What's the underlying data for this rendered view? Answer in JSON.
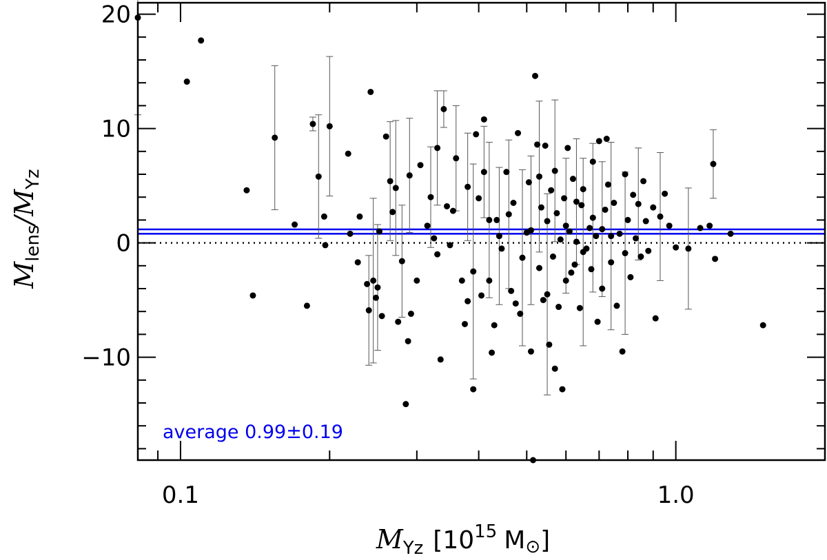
{
  "chart_data": {
    "type": "scatter",
    "x_scale": "log",
    "xlim": [
      0.082,
      2.0
    ],
    "ylim": [
      -19,
      21
    ],
    "x_ticks": [
      {
        "value": 0.1,
        "label": "0.1"
      },
      {
        "value": 1.0,
        "label": "1.0"
      }
    ],
    "y_ticks": [
      {
        "value": -10,
        "label": "−10"
      },
      {
        "value": 0,
        "label": "0"
      },
      {
        "value": 10,
        "label": "10"
      },
      {
        "value": 20,
        "label": "20"
      }
    ],
    "xlabel": {
      "main": "M",
      "sub": "Yz",
      "unit_pre": "[10",
      "unit_exp": "15",
      "unit_post": "M",
      "unit_symbol": "⊙",
      "unit_close": "]"
    },
    "ylabel": {
      "num": "M",
      "num_sub": "lens",
      "slash": "/",
      "den": "M",
      "den_sub": "Yz"
    },
    "zero_line": {
      "y": 0,
      "style": "dotted",
      "color": "#000000"
    },
    "average": {
      "value": 0.99,
      "error": 0.19,
      "color": "#0000ee",
      "label": "average 0.99±0.19"
    },
    "points_with_errors": [
      {
        "x": 0.082,
        "y": 19.7,
        "err": 8.5
      },
      {
        "x": 0.155,
        "y": 9.2,
        "err": 6.3
      },
      {
        "x": 0.185,
        "y": 10.4,
        "err": 0.6
      },
      {
        "x": 0.19,
        "y": 5.8,
        "err": 5.4
      },
      {
        "x": 0.2,
        "y": 10.2,
        "err": 6.1
      },
      {
        "x": 0.24,
        "y": -5.9,
        "err": 4.8
      },
      {
        "x": 0.245,
        "y": -3.3,
        "err": 7.2
      },
      {
        "x": 0.25,
        "y": -3.9,
        "err": 5.5
      },
      {
        "x": 0.265,
        "y": 5.4,
        "err": 5.2
      },
      {
        "x": 0.272,
        "y": 4.8,
        "err": 5.9
      },
      {
        "x": 0.28,
        "y": -1.6,
        "err": 4.9
      },
      {
        "x": 0.29,
        "y": 5.9,
        "err": 5.0
      },
      {
        "x": 0.32,
        "y": 4.0,
        "err": 4.4
      },
      {
        "x": 0.33,
        "y": 8.3,
        "err": 5.0
      },
      {
        "x": 0.34,
        "y": 11.7,
        "err": 1.6
      },
      {
        "x": 0.36,
        "y": 7.4,
        "err": 4.6
      },
      {
        "x": 0.38,
        "y": 4.9,
        "err": 4.7
      },
      {
        "x": 0.39,
        "y": -2.5,
        "err": 9.4
      },
      {
        "x": 0.41,
        "y": 6.2,
        "err": 4.0
      },
      {
        "x": 0.42,
        "y": 2.0,
        "err": 6.8
      },
      {
        "x": 0.44,
        "y": 0.6,
        "err": 6.0
      },
      {
        "x": 0.46,
        "y": 2.5,
        "err": 6.5
      },
      {
        "x": 0.49,
        "y": -1.3,
        "err": 7.7
      },
      {
        "x": 0.51,
        "y": 1.1,
        "err": 6.5
      },
      {
        "x": 0.53,
        "y": 5.8,
        "err": 6.6
      },
      {
        "x": 0.55,
        "y": -4.5,
        "err": 8.8
      },
      {
        "x": 0.57,
        "y": 6.3,
        "err": 6.2
      },
      {
        "x": 0.6,
        "y": 1.5,
        "err": 5.9
      },
      {
        "x": 0.63,
        "y": 3.6,
        "err": 5.5
      },
      {
        "x": 0.65,
        "y": -0.8,
        "err": 8.2
      },
      {
        "x": 0.68,
        "y": 2.2,
        "err": 6.5
      },
      {
        "x": 0.71,
        "y": 1.2,
        "err": 5.9
      },
      {
        "x": 0.74,
        "y": 0.6,
        "err": 8.2
      },
      {
        "x": 0.79,
        "y": -0.9,
        "err": 7.1
      },
      {
        "x": 0.84,
        "y": 3.4,
        "err": 4.9
      },
      {
        "x": 0.93,
        "y": 2.3,
        "err": 5.6
      },
      {
        "x": 1.06,
        "y": -0.5,
        "err": 5.3
      },
      {
        "x": 1.19,
        "y": 6.9,
        "err": 3.0
      }
    ],
    "points": [
      {
        "x": 0.103,
        "y": 14.1
      },
      {
        "x": 0.11,
        "y": 17.7
      },
      {
        "x": 0.136,
        "y": 4.6
      },
      {
        "x": 0.14,
        "y": -4.6
      },
      {
        "x": 0.17,
        "y": 1.6
      },
      {
        "x": 0.18,
        "y": -5.5
      },
      {
        "x": 0.195,
        "y": 2.3
      },
      {
        "x": 0.196,
        "y": -0.2
      },
      {
        "x": 0.218,
        "y": 7.8
      },
      {
        "x": 0.22,
        "y": 0.8
      },
      {
        "x": 0.228,
        "y": -1.7
      },
      {
        "x": 0.23,
        "y": 2.3
      },
      {
        "x": 0.238,
        "y": -3.6
      },
      {
        "x": 0.242,
        "y": 13.2
      },
      {
        "x": 0.248,
        "y": -4.8
      },
      {
        "x": 0.252,
        "y": 1.0
      },
      {
        "x": 0.255,
        "y": -6.4
      },
      {
        "x": 0.26,
        "y": 9.3
      },
      {
        "x": 0.268,
        "y": 2.7
      },
      {
        "x": 0.275,
        "y": -6.9
      },
      {
        "x": 0.285,
        "y": -14.1
      },
      {
        "x": 0.288,
        "y": -8.6
      },
      {
        "x": 0.292,
        "y": -6.2
      },
      {
        "x": 0.3,
        "y": -3.3
      },
      {
        "x": 0.305,
        "y": 6.8
      },
      {
        "x": 0.315,
        "y": 1.5
      },
      {
        "x": 0.325,
        "y": 0.4
      },
      {
        "x": 0.33,
        "y": -1.0
      },
      {
        "x": 0.335,
        "y": -10.2
      },
      {
        "x": 0.345,
        "y": 3.2
      },
      {
        "x": 0.35,
        "y": -0.2
      },
      {
        "x": 0.355,
        "y": 2.8
      },
      {
        "x": 0.37,
        "y": -3.3
      },
      {
        "x": 0.375,
        "y": -7.1
      },
      {
        "x": 0.38,
        "y": -5.1
      },
      {
        "x": 0.39,
        "y": -12.8
      },
      {
        "x": 0.395,
        "y": 9.5
      },
      {
        "x": 0.4,
        "y": 3.9
      },
      {
        "x": 0.405,
        "y": -4.6
      },
      {
        "x": 0.41,
        "y": 10.8
      },
      {
        "x": 0.42,
        "y": -3.3
      },
      {
        "x": 0.425,
        "y": -9.6
      },
      {
        "x": 0.43,
        "y": -7.2
      },
      {
        "x": 0.435,
        "y": 2.0
      },
      {
        "x": 0.445,
        "y": -0.5
      },
      {
        "x": 0.455,
        "y": 6.2
      },
      {
        "x": 0.465,
        "y": -4.2
      },
      {
        "x": 0.47,
        "y": 3.5
      },
      {
        "x": 0.475,
        "y": -5.3
      },
      {
        "x": 0.48,
        "y": 9.6
      },
      {
        "x": 0.485,
        "y": -6.2
      },
      {
        "x": 0.5,
        "y": 0.9
      },
      {
        "x": 0.505,
        "y": 5.3
      },
      {
        "x": 0.51,
        "y": -9.5
      },
      {
        "x": 0.515,
        "y": -19.0
      },
      {
        "x": 0.52,
        "y": 14.6
      },
      {
        "x": 0.525,
        "y": 8.6
      },
      {
        "x": 0.53,
        "y": -2.2
      },
      {
        "x": 0.535,
        "y": 3.1
      },
      {
        "x": 0.54,
        "y": -5.0
      },
      {
        "x": 0.545,
        "y": 8.5
      },
      {
        "x": 0.55,
        "y": 1.9
      },
      {
        "x": 0.555,
        "y": -8.9
      },
      {
        "x": 0.56,
        "y": 4.6
      },
      {
        "x": 0.565,
        "y": -1.2
      },
      {
        "x": 0.57,
        "y": -11.0
      },
      {
        "x": 0.575,
        "y": 2.6
      },
      {
        "x": 0.58,
        "y": -5.6
      },
      {
        "x": 0.585,
        "y": 0.3
      },
      {
        "x": 0.59,
        "y": -12.8
      },
      {
        "x": 0.595,
        "y": 3.9
      },
      {
        "x": 0.6,
        "y": -3.3
      },
      {
        "x": 0.605,
        "y": 8.3
      },
      {
        "x": 0.61,
        "y": 1.0
      },
      {
        "x": 0.615,
        "y": -2.6
      },
      {
        "x": 0.62,
        "y": 5.6
      },
      {
        "x": 0.625,
        "y": -1.9
      },
      {
        "x": 0.63,
        "y": 0.1
      },
      {
        "x": 0.64,
        "y": -5.7
      },
      {
        "x": 0.645,
        "y": 3.3
      },
      {
        "x": 0.65,
        "y": 4.7
      },
      {
        "x": 0.66,
        "y": -0.5
      },
      {
        "x": 0.67,
        "y": 1.3
      },
      {
        "x": 0.675,
        "y": -2.3
      },
      {
        "x": 0.68,
        "y": 7.1
      },
      {
        "x": 0.69,
        "y": 0.6
      },
      {
        "x": 0.695,
        "y": -6.9
      },
      {
        "x": 0.7,
        "y": 8.9
      },
      {
        "x": 0.71,
        "y": -4.0
      },
      {
        "x": 0.72,
        "y": 2.9
      },
      {
        "x": 0.725,
        "y": 9.1
      },
      {
        "x": 0.73,
        "y": 5.1
      },
      {
        "x": 0.74,
        "y": -1.7
      },
      {
        "x": 0.75,
        "y": 3.5
      },
      {
        "x": 0.76,
        "y": -5.5
      },
      {
        "x": 0.77,
        "y": 0.8
      },
      {
        "x": 0.78,
        "y": -9.5
      },
      {
        "x": 0.79,
        "y": 6.0
      },
      {
        "x": 0.8,
        "y": 2.0
      },
      {
        "x": 0.81,
        "y": -3.0
      },
      {
        "x": 0.82,
        "y": 4.2
      },
      {
        "x": 0.83,
        "y": 0.4
      },
      {
        "x": 0.85,
        "y": -1.2
      },
      {
        "x": 0.86,
        "y": 5.4
      },
      {
        "x": 0.87,
        "y": 1.9
      },
      {
        "x": 0.88,
        "y": -0.7
      },
      {
        "x": 0.9,
        "y": 3.1
      },
      {
        "x": 0.91,
        "y": -6.6
      },
      {
        "x": 0.95,
        "y": 4.3
      },
      {
        "x": 0.97,
        "y": 1.5
      },
      {
        "x": 1.0,
        "y": -0.4
      },
      {
        "x": 1.12,
        "y": 1.3
      },
      {
        "x": 1.17,
        "y": 1.5
      },
      {
        "x": 1.2,
        "y": -1.4
      },
      {
        "x": 1.29,
        "y": 0.8
      },
      {
        "x": 1.5,
        "y": -7.2
      }
    ]
  }
}
